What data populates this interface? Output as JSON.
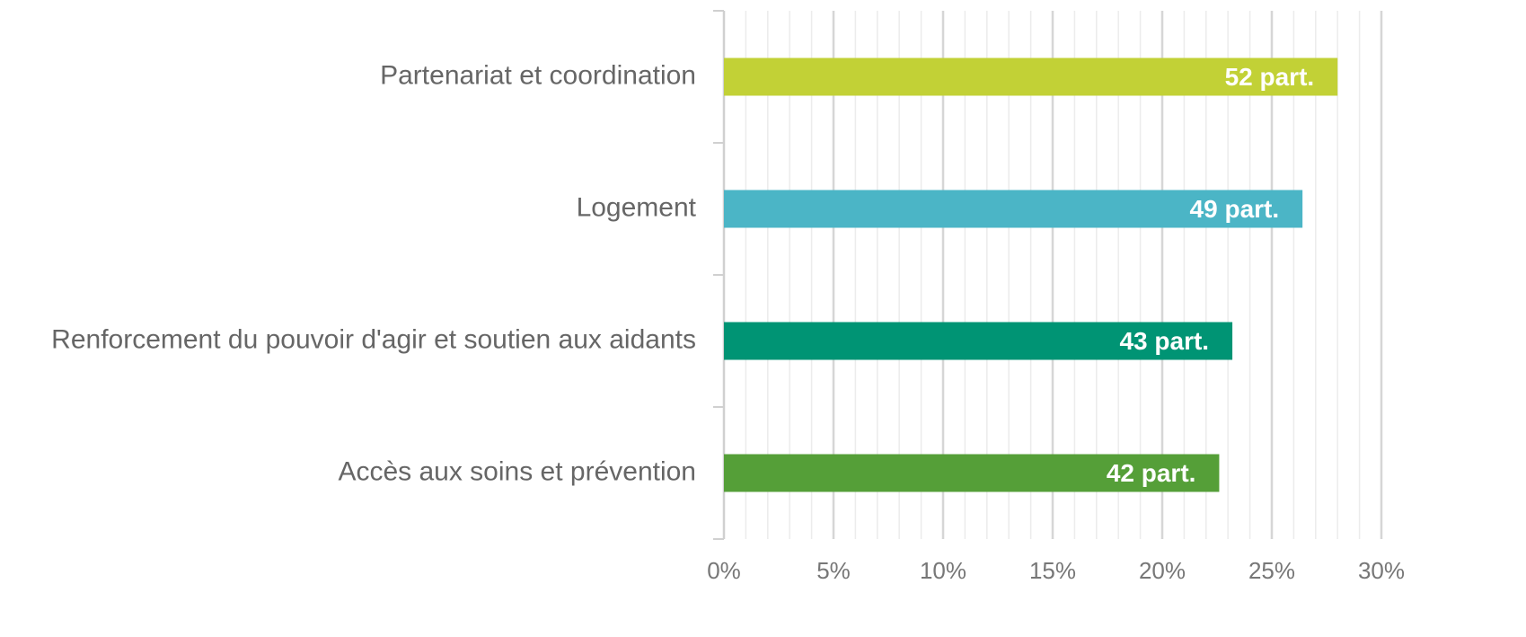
{
  "chart_data": {
    "type": "barh",
    "categories": [
      "Partenariat et coordination",
      "Logement",
      "Renforcement du pouvoir d'agir et soutien aux aidants",
      "Accès aux soins et prévention"
    ],
    "values": [
      28.0,
      26.4,
      23.2,
      22.6
    ],
    "bar_labels": [
      "52 part.",
      "49 part.",
      "43 part.",
      "42 part."
    ],
    "colors": [
      "#c2d136",
      "#4bb5c6",
      "#009474",
      "#559f38"
    ],
    "xlim": [
      0,
      30
    ],
    "xticks": [
      {
        "value": 0,
        "label": "0%"
      },
      {
        "value": 5,
        "label": "5%"
      },
      {
        "value": 10,
        "label": "10%"
      },
      {
        "value": 15,
        "label": "15%"
      },
      {
        "value": 20,
        "label": "20%"
      },
      {
        "value": 25,
        "label": "25%"
      },
      {
        "value": 30,
        "label": "30%"
      }
    ],
    "minor_xticks": [
      1,
      2,
      3,
      4,
      6,
      7,
      8,
      9,
      11,
      12,
      13,
      14,
      16,
      17,
      18,
      19,
      21,
      22,
      23,
      24,
      26,
      27,
      28,
      29
    ],
    "grid": true
  }
}
